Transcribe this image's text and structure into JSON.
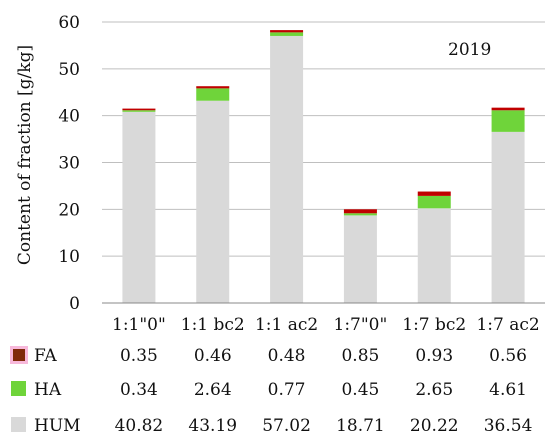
{
  "chart_data": {
    "type": "bar",
    "stacked": true,
    "annotation": "2019",
    "ylabel": "Content of fraction [g/kg]",
    "ylim": [
      0,
      60
    ],
    "yticks": [
      0,
      10,
      20,
      30,
      40,
      50,
      60
    ],
    "grid": true,
    "categories": [
      "1:1\"0\"",
      "1:1 bc2",
      "1:1 ac2",
      "1:7\"0\"",
      "1:7 bc2",
      "1:7 ac2"
    ],
    "series": [
      {
        "name": "FA",
        "color": "#c00000",
        "table_color": "#7f2a0a",
        "values": [
          0.35,
          0.46,
          0.48,
          0.85,
          0.93,
          0.56
        ]
      },
      {
        "name": "HA",
        "color": "#6fd43a",
        "table_color": "#6fd43a",
        "values": [
          0.34,
          2.64,
          0.77,
          0.45,
          2.65,
          4.61
        ]
      },
      {
        "name": "HUM",
        "color": "#d9d9d9",
        "table_color": "#d9d9d9",
        "values": [
          40.82,
          43.19,
          57.02,
          18.71,
          20.22,
          36.54
        ]
      }
    ],
    "table_values": {
      "FA": [
        "0.35",
        "0.46",
        "0.48",
        "0.85",
        "0.93",
        "0.56"
      ],
      "HA": [
        "0.34",
        "2.64",
        "0.77",
        "0.45",
        "2.65",
        "4.61"
      ],
      "HUM": [
        "40.82",
        "43.19",
        "57.02",
        "18.71",
        "20.22",
        "36.54"
      ]
    }
  }
}
